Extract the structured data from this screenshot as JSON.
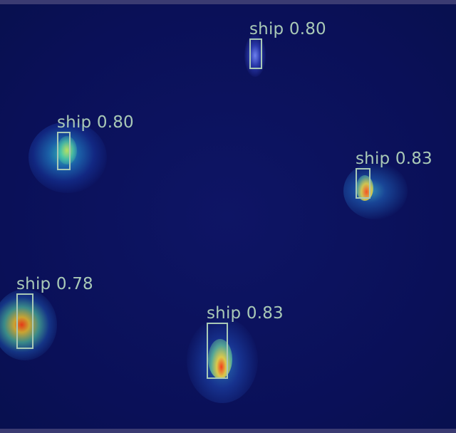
{
  "detections": [
    {
      "label": "ship",
      "score": "0.80"
    },
    {
      "label": "ship",
      "score": "0.80"
    },
    {
      "label": "ship",
      "score": "0.83"
    },
    {
      "label": "ship",
      "score": "0.78"
    },
    {
      "label": "ship",
      "score": "0.83"
    }
  ],
  "colors": {
    "background": "#0a1058",
    "box_outline": "#a9c9b6",
    "frame": "#3b3b72"
  }
}
